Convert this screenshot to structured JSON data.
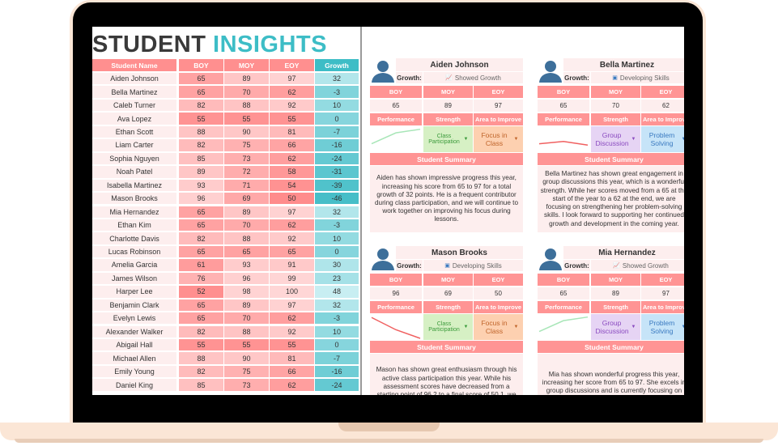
{
  "title": {
    "part1": "STUDENT",
    "part2": "INSIGHTS"
  },
  "colors": {
    "accent_red": "#ff8a8a",
    "accent_teal": "#3dbdc6",
    "title_dark": "#3a3a3a",
    "frame": "#fbe6d6"
  },
  "table": {
    "headers": [
      "Student Name",
      "BOY",
      "MOY",
      "EOY",
      "Growth"
    ],
    "rows": [
      [
        "Aiden Johnson",
        65,
        89,
        97,
        32
      ],
      [
        "Bella Martinez",
        65,
        70,
        62,
        -3
      ],
      [
        "Caleb Turner",
        82,
        88,
        92,
        10
      ],
      [
        "Ava Lopez",
        55,
        55,
        55,
        0
      ],
      [
        "Ethan Scott",
        88,
        90,
        81,
        -7
      ],
      [
        "Liam Carter",
        82,
        75,
        66,
        -16
      ],
      [
        "Sophia Nguyen",
        85,
        73,
        62,
        -24
      ],
      [
        "Noah Patel",
        89,
        72,
        58,
        -31
      ],
      [
        "Isabella Martinez",
        93,
        71,
        54,
        -39
      ],
      [
        "Mason Brooks",
        96,
        69,
        50,
        -46
      ],
      [
        "Mia Hernandez",
        65,
        89,
        97,
        32
      ],
      [
        "Ethan Kim",
        65,
        70,
        62,
        -3
      ],
      [
        "Charlotte Davis",
        82,
        88,
        92,
        10
      ],
      [
        "Lucas Robinson",
        65,
        65,
        65,
        0
      ],
      [
        "Amelia Garcia",
        61,
        93,
        91,
        30
      ],
      [
        "James Wilson",
        76,
        96,
        99,
        23
      ],
      [
        "Harper Lee",
        52,
        98,
        100,
        48
      ],
      [
        "Benjamin Clark",
        65,
        89,
        97,
        32
      ],
      [
        "Evelyn Lewis",
        65,
        70,
        62,
        -3
      ],
      [
        "Alexander Walker",
        82,
        88,
        92,
        10
      ],
      [
        "Abigail Hall",
        55,
        55,
        55,
        0
      ],
      [
        "Michael Allen",
        88,
        90,
        81,
        -7
      ],
      [
        "Emily Young",
        82,
        75,
        66,
        -16
      ],
      [
        "Daniel King",
        85,
        73,
        62,
        -24
      ]
    ]
  },
  "card_labels": {
    "growth": "Growth:",
    "boy": "BOY",
    "moy": "MOY",
    "eoy": "EOY",
    "performance": "Performance",
    "strength": "Strength",
    "area": "Area to Improve",
    "summary": "Student Summary"
  },
  "cards": [
    {
      "name": "Aiden Johnson",
      "growth_icon": "chart-up-icon",
      "growth": "Showed Growth",
      "boy": 65,
      "moy": 89,
      "eoy": 97,
      "strength": "Class Participation",
      "strength_color": "#d6f0c4",
      "strength_text": "#3a9a3a",
      "area": "Focus in Class",
      "area_color": "#fdd0b0",
      "area_text": "#c0642a",
      "trend_color": "#a8e6b8",
      "summary": "Aiden has shown impressive progress this year, increasing his score from 65 to 97 for a total growth of 32 points. He is a frequent contributor during class participation, and we will continue to work together on improving his focus during lessons."
    },
    {
      "name": "Bella Martinez",
      "growth_icon": "skills-icon",
      "growth": "Developing Skills",
      "boy": 65,
      "moy": 70,
      "eoy": 62,
      "strength": "Group Discussion",
      "strength_color": "#e6d4f4",
      "strength_text": "#8a4ac0",
      "area": "Problem Solving",
      "area_color": "#c6e4f8",
      "area_text": "#3a7ac0",
      "trend_color": "#f06060",
      "summary": "Bella Martinez has shown great engagement in group discussions this year, which is a wonderful strength. While her scores moved from a 65 at the start of the year to a 62 at the end, we are focusing on strengthening her problem-solving skills. I look forward to supporting her continued growth and development in the coming year."
    },
    {
      "name": "Mason Brooks",
      "growth_icon": "skills-icon",
      "growth": "Developing Skills",
      "boy": 96,
      "moy": 69,
      "eoy": 50,
      "strength": "Class Participation",
      "strength_color": "#d6f0c4",
      "strength_text": "#3a9a3a",
      "area": "Focus in Class",
      "area_color": "#fdd0b0",
      "area_text": "#c0642a",
      "trend_color": "#f06060",
      "summary": "Mason has shown great enthusiasm through his active class participation this year. While his assessment scores have decreased from a starting point of 96.2 to a final score of 50.1, we are committed to supporting him. We will"
    },
    {
      "name": "Mia Hernandez",
      "growth_icon": "chart-up-icon",
      "growth": "Showed Growth",
      "boy": 65,
      "moy": 89,
      "eoy": 97,
      "strength": "Group Discussion",
      "strength_color": "#e6d4f4",
      "strength_text": "#8a4ac0",
      "area": "Problem Solving",
      "area_color": "#c6e4f8",
      "area_text": "#3a7ac0",
      "trend_color": "#a8e6b8",
      "summary": "Mia has shown wonderful progress this year, increasing her score from 65 to 97. She excels in group discussions and is currently focusing on strengthening her problem-solving skills. We"
    }
  ]
}
